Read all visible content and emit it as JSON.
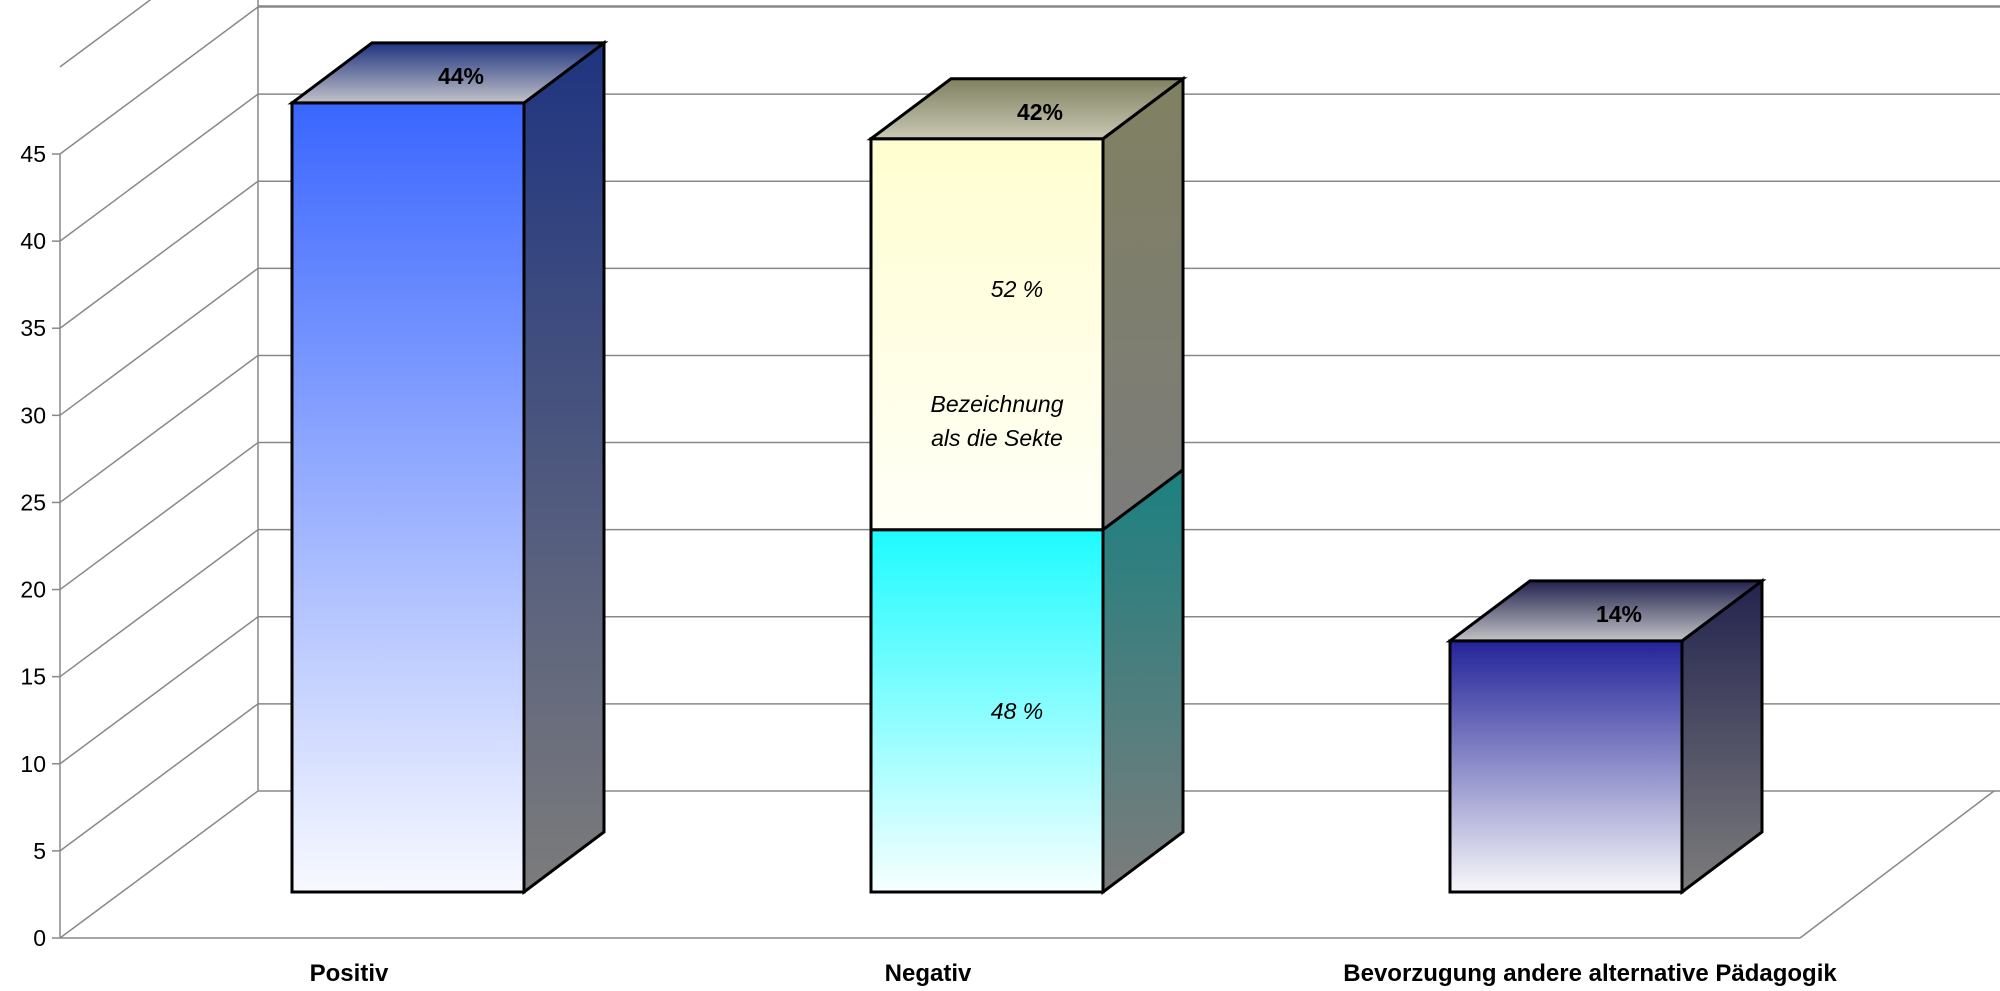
{
  "chart_data": {
    "type": "bar",
    "stacked": true,
    "three_d": true,
    "title": "",
    "xlabel": "",
    "ylabel": "",
    "ylim": [
      0,
      45
    ],
    "yticks": [
      0,
      5,
      10,
      15,
      20,
      25,
      30,
      35,
      40,
      45
    ],
    "grid": true,
    "legend": "none",
    "categories": [
      "Positiv",
      "Negativ",
      "Bevorzugung andere alternative Pädagogik"
    ],
    "bars": [
      {
        "category": "Positiv",
        "top_label": "44%",
        "segments": [
          {
            "value": 44,
            "label": "",
            "colors": {
              "front_top": "#3a66ff",
              "front_bottom": "#f8f9ff",
              "side_top": "#1f3480",
              "side_bottom": "#7c7c7c",
              "cap": "#c2c2c8"
            }
          }
        ]
      },
      {
        "category": "Negativ",
        "top_label": "42%",
        "segments": [
          {
            "value": 20.2,
            "label": "48 %",
            "colors": {
              "front_top": "#1dfbff",
              "front_bottom": "#f7ffff",
              "side_top": "#1c8080",
              "side_bottom": "#7c7c7c",
              "cap": "#c2c2c2"
            }
          },
          {
            "value": 21.8,
            "label": "52 %",
            "label2": [
              "Bezeichnung",
              "als die Sekte"
            ],
            "colors": {
              "front_top": "#fffed0",
              "front_bottom": "#fffff7",
              "side_top": "#808061",
              "side_bottom": "#7c7c7c",
              "cap": "#c8c8b4"
            }
          }
        ]
      },
      {
        "category": "Bevorzugung andere alternative Pädagogik",
        "top_label": "14%",
        "segments": [
          {
            "value": 14,
            "label": "",
            "colors": {
              "front_top": "#23239a",
              "front_bottom": "#f8f8fa",
              "side_top": "#23234f",
              "side_bottom": "#7c7c7c",
              "cap": "#c2c2c6"
            }
          }
        ]
      }
    ]
  }
}
